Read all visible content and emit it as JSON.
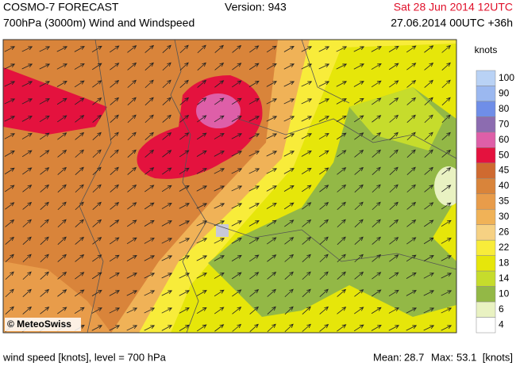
{
  "header": {
    "title": "COSMO-7 FORECAST",
    "subtitle": "700hPa (3000m) Wind and Windspeed",
    "version": "Version: 943",
    "valid_time": "Sat 28 Jun 2014 12UTC",
    "run_time": "27.06.2014 00UTC +36h"
  },
  "map": {
    "copyright": "© MeteoSwiss"
  },
  "legend": {
    "unit": "knots",
    "levels": [
      {
        "label": 100,
        "color": "#b9d2f5"
      },
      {
        "label": 90,
        "color": "#9bb8f0"
      },
      {
        "label": 80,
        "color": "#6f8ee8"
      },
      {
        "label": 70,
        "color": "#8c6cb0"
      },
      {
        "label": 60,
        "color": "#de5fa8"
      },
      {
        "label": 50,
        "color": "#e4123e"
      },
      {
        "label": 45,
        "color": "#cf6a30"
      },
      {
        "label": 40,
        "color": "#d9843a"
      },
      {
        "label": 35,
        "color": "#e89c4a"
      },
      {
        "label": 30,
        "color": "#f0b257"
      },
      {
        "label": 26,
        "color": "#f6d183"
      },
      {
        "label": 22,
        "color": "#f8ec3a"
      },
      {
        "label": 18,
        "color": "#e6e60a"
      },
      {
        "label": 14,
        "color": "#c6dc2c"
      },
      {
        "label": 10,
        "color": "#93b846"
      },
      {
        "label": 6,
        "color": "#e9f2c2"
      },
      {
        "label": 4,
        "color": "#ffffff"
      }
    ]
  },
  "footer": {
    "description": "wind speed [knots], level = 700 hPa",
    "mean_label": "Mean:",
    "mean": 28.7,
    "max_label": "Max:",
    "max": 53.1,
    "unit": "[knots]"
  }
}
